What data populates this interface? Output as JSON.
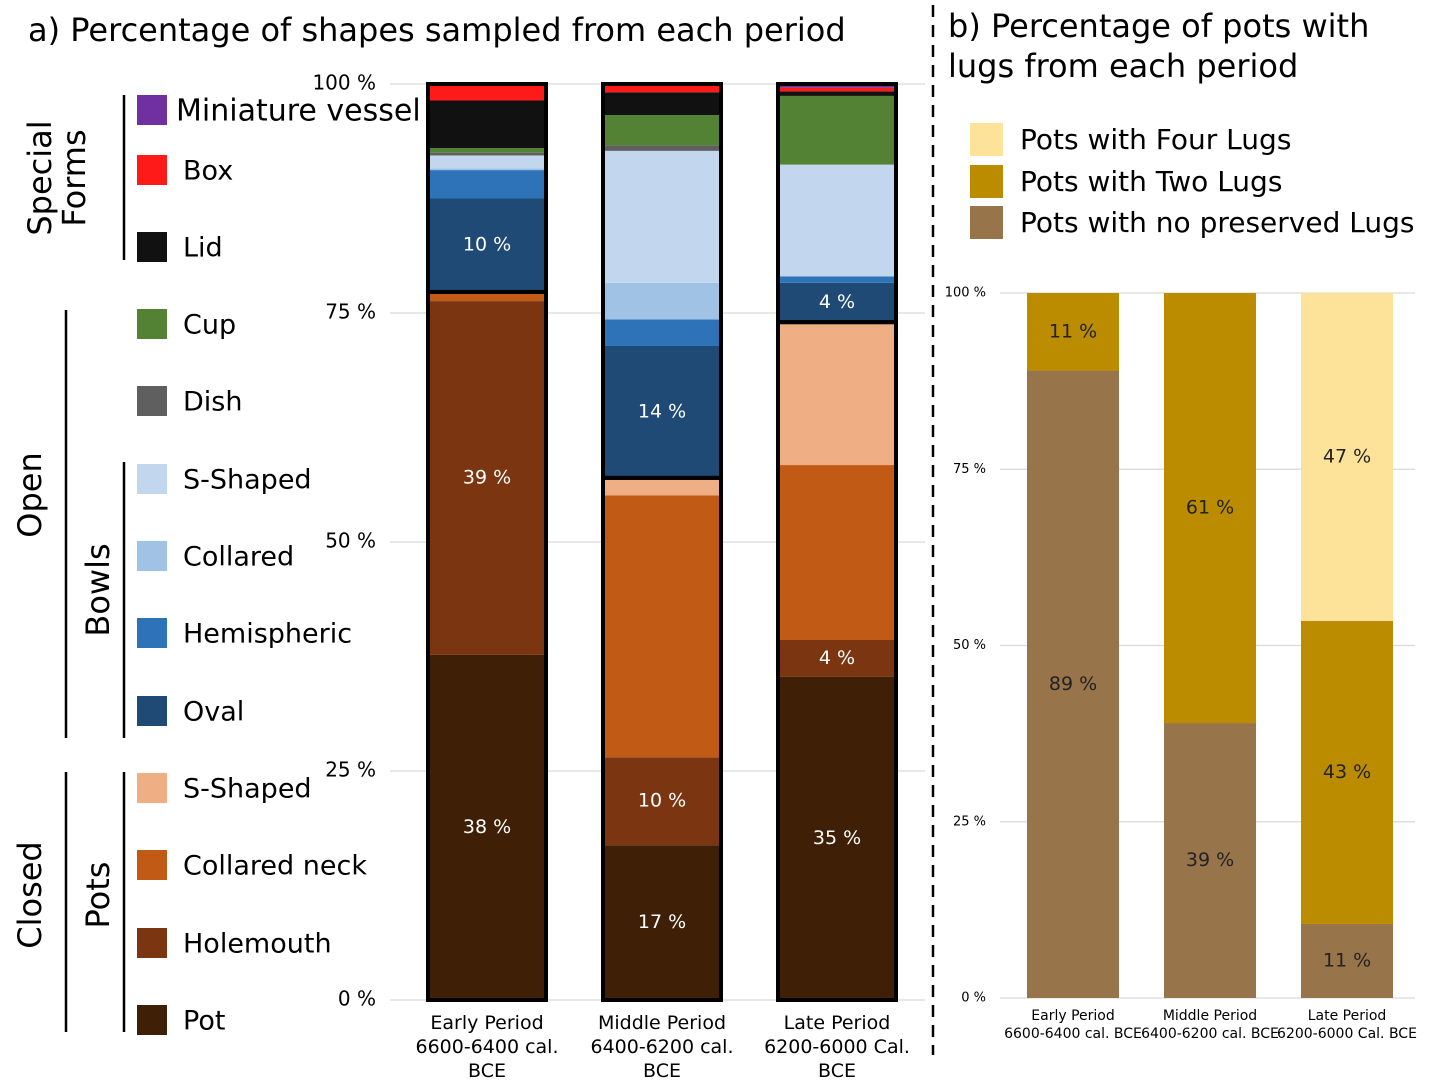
{
  "chart_data": [
    {
      "type": "bar",
      "stacked": true,
      "title": "a) Percentage of shapes sampled from each period",
      "categories": [
        "Early Period\n6600-6400 cal. BCE",
        "Middle Period\n6400-6200 cal. BCE",
        "Late Period\n6200-6000 Cal. BCE"
      ],
      "series": [
        {
          "name": "Pot",
          "color": "#3f1f05",
          "values": [
            37.7,
            16.9,
            35.3
          ],
          "value_labels": [
            "38 %",
            "17 %",
            "35 %"
          ]
        },
        {
          "name": "Holemouth",
          "color": "#7b3510",
          "values": [
            38.6,
            9.6,
            4.0
          ],
          "value_labels": [
            "39 %",
            "10 %",
            "4 %"
          ]
        },
        {
          "name": "Collared neck",
          "color": "#c05a14",
          "values": [
            1.0,
            28.6,
            19.1
          ]
        },
        {
          "name": "S-Shaped",
          "color": "#f0ae84",
          "values": [
            0,
            1.9,
            15.6
          ]
        },
        {
          "name": "Oval",
          "color": "#1f4a75",
          "values": [
            10.2,
            14.4,
            4.3
          ],
          "value_labels": [
            "10 %",
            "14 %",
            "4 %"
          ]
        },
        {
          "name": "Hemispheric",
          "color": "#2e73b8",
          "values": [
            3.1,
            2.9,
            0.7
          ]
        },
        {
          "name": "Collared",
          "color": "#9fc2e5",
          "values": [
            0.2,
            4.0,
            0
          ]
        },
        {
          "name": "S-Shaped",
          "color": "#c2d6ee",
          "values": [
            1.4,
            14.4,
            12.2
          ]
        },
        {
          "name": "Dish",
          "color": "#5f5f5f",
          "values": [
            0.3,
            0.6,
            0
          ]
        },
        {
          "name": "Cup",
          "color": "#548235",
          "values": [
            0.5,
            3.3,
            7.5
          ]
        },
        {
          "name": "Lid",
          "color": "#111111",
          "values": [
            5.2,
            2.5,
            0.5
          ]
        },
        {
          "name": "Box",
          "color": "#ff1a1a",
          "values": [
            1.8,
            0.9,
            0.4
          ]
        },
        {
          "name": "Miniature vessel",
          "color": "#7030a0",
          "values": [
            0,
            0,
            0.4
          ]
        }
      ],
      "legend_groups": [
        "Special\nForms",
        "Open",
        "Bowls",
        "Closed",
        "Pots"
      ],
      "ylim": [
        0,
        100
      ],
      "yticks": [
        {
          "value": 0,
          "label": "0 %"
        },
        {
          "value": 25,
          "label": "25 %"
        },
        {
          "value": 50,
          "label": "50 %"
        },
        {
          "value": 75,
          "label": "75 %"
        },
        {
          "value": 100,
          "label": "100 %"
        }
      ],
      "grid": true
    },
    {
      "type": "bar",
      "stacked": true,
      "title": "b) Percentage of pots with lugs from each period",
      "categories": [
        "Early Period\n6600-6400 cal. BCE",
        "Middle Period\n6400-6200 cal. BCE",
        "Late Period\n6200-6000 Cal. BCE"
      ],
      "series": [
        {
          "name": "Pots with no preserved Lugs",
          "color": "#98744b",
          "values": [
            89,
            39,
            10.5
          ],
          "value_labels": [
            "89 %",
            "39 %",
            "11 %"
          ]
        },
        {
          "name": "Pots with Two Lugs",
          "color": "#bb8c00",
          "values": [
            11,
            61,
            43
          ],
          "value_labels": [
            "11 %",
            "61 %",
            "43 %"
          ]
        },
        {
          "name": "Pots with Four Lugs",
          "color": "#fde39a",
          "values": [
            0,
            0,
            46.5
          ],
          "value_labels": [
            null,
            null,
            "47 %"
          ]
        }
      ],
      "ylim": [
        0,
        100
      ],
      "yticks": [
        {
          "value": 0,
          "label": "0 %"
        },
        {
          "value": 25,
          "label": "25 %"
        },
        {
          "value": 50,
          "label": "50 %"
        },
        {
          "value": 75,
          "label": "75 %"
        },
        {
          "value": 100,
          "label": "100 %"
        }
      ],
      "grid": true
    }
  ]
}
